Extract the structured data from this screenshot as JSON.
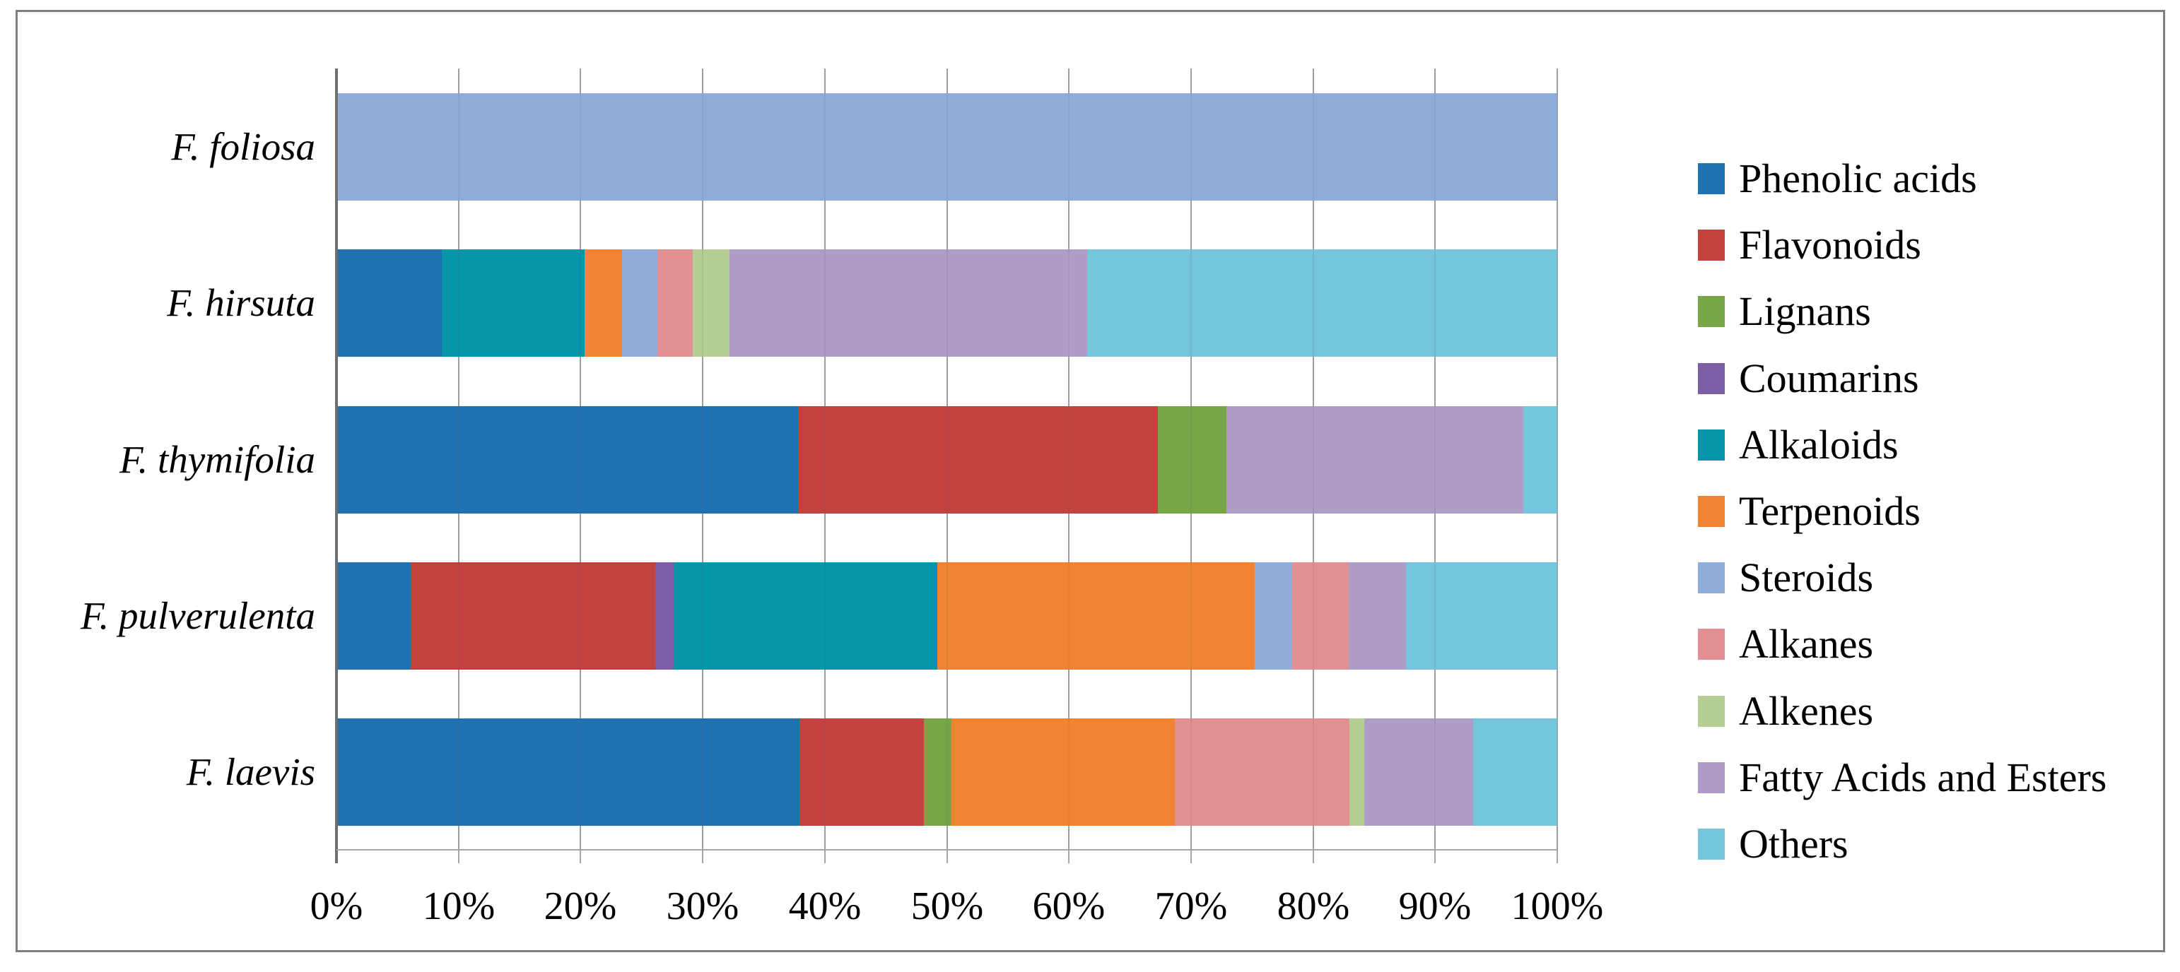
{
  "chart_data": {
    "type": "bar",
    "variant": "horizontal-stacked-100",
    "title": "",
    "xlabel": "",
    "ylabel": "",
    "unit": "%",
    "grid": true,
    "legend_position": "right",
    "categories": [
      "F. foliosa",
      "F. hirsuta",
      "F. thymifolia",
      "F. pulverulenta",
      "F. laevis"
    ],
    "x_axis": {
      "min": 0,
      "max": 100,
      "tick_step": 10,
      "tick_labels": [
        "0%",
        "10%",
        "20%",
        "30%",
        "40%",
        "50%",
        "60%",
        "70%",
        "80%",
        "90%",
        "100%"
      ]
    },
    "series": [
      {
        "name": "Phenolic acids",
        "color": "#1F72B1",
        "values": [
          0,
          8.6,
          37.8,
          6.1,
          37.9
        ]
      },
      {
        "name": "Flavonoids",
        "color": "#C2423E",
        "values": [
          0,
          0,
          29.5,
          20.0,
          10.2
        ]
      },
      {
        "name": "Lignans",
        "color": "#78A546",
        "values": [
          0,
          0,
          5.6,
          0,
          2.3
        ]
      },
      {
        "name": "Coumarins",
        "color": "#7D5EA6",
        "values": [
          0,
          0,
          0,
          1.5,
          0
        ]
      },
      {
        "name": "Alkaloids",
        "color": "#0596AA",
        "values": [
          0,
          11.7,
          0,
          21.6,
          0
        ]
      },
      {
        "name": "Terpenoids",
        "color": "#F08432",
        "values": [
          0,
          3.1,
          0,
          26.0,
          18.3
        ]
      },
      {
        "name": "Steroids",
        "color": "#8EAED9",
        "values": [
          100,
          2.9,
          0,
          3.1,
          0
        ]
      },
      {
        "name": "Alkanes",
        "color": "#E29091",
        "values": [
          0,
          2.9,
          0,
          4.6,
          14.3
        ]
      },
      {
        "name": "Alkenes",
        "color": "#B4CE94",
        "values": [
          0,
          3.0,
          0,
          0,
          1.2
        ]
      },
      {
        "name": "Fatty Acids and Esters",
        "color": "#B09CC8",
        "values": [
          0,
          29.3,
          24.3,
          4.7,
          8.9
        ]
      },
      {
        "name": "Others",
        "color": "#75C5DD",
        "values": [
          0,
          38.5,
          2.8,
          12.4,
          6.9
        ]
      }
    ],
    "style": {
      "gridline_color": "#a6a6a6",
      "axis_color": "#6e6e6e",
      "frame_color": "#7f7f7f",
      "text_color": "#000000"
    }
  }
}
